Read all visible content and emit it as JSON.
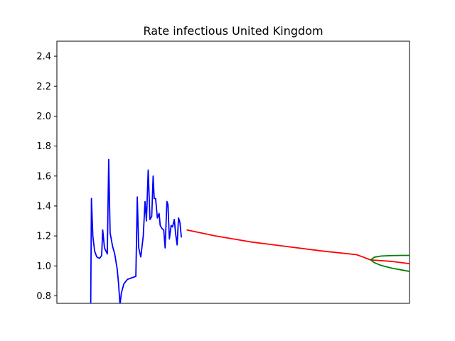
{
  "chart_data": {
    "type": "line",
    "title": "Rate infectious United Kingdom",
    "xlabel": "",
    "ylabel": "",
    "ylim": [
      0.75,
      2.5
    ],
    "xlim": [
      0,
      100
    ],
    "yticks": [
      "0.8",
      "1.0",
      "1.2",
      "1.4",
      "1.6",
      "1.8",
      "2.0",
      "2.2",
      "2.4"
    ],
    "grid": false,
    "series": [
      {
        "color": "#0000ff",
        "x": [
          9.6,
          9.8,
          10.2,
          10.7,
          11.3,
          12.1,
          12.7,
          13.0,
          13.5,
          14.3,
          14.7,
          15.1,
          15.8,
          16.4,
          17.1,
          17.5,
          17.9,
          18.3,
          19.0,
          20.0,
          21.2,
          22.4,
          22.8,
          23.2,
          23.8,
          24.5,
          25.0,
          25.4,
          25.9,
          26.4,
          26.9,
          27.3,
          27.6,
          28.0,
          28.5,
          29.0,
          29.3,
          29.8,
          30.3,
          30.7,
          31.2,
          31.5,
          31.9,
          32.4,
          32.8,
          33.3,
          33.7,
          34.1,
          34.5,
          34.9,
          35.3,
          35.7,
          36.2,
          36.6,
          37.0,
          37.4,
          37.8
        ],
        "y": [
          0.74,
          1.45,
          1.2,
          1.1,
          1.06,
          1.05,
          1.07,
          1.24,
          1.12,
          1.08,
          1.71,
          1.22,
          1.13,
          1.08,
          0.98,
          0.88,
          0.74,
          0.82,
          0.88,
          0.91,
          0.92,
          0.93,
          1.46,
          1.12,
          1.06,
          1.2,
          1.43,
          1.3,
          1.64,
          1.31,
          1.33,
          1.6,
          1.45,
          1.45,
          1.32,
          1.35,
          1.27,
          1.25,
          1.24,
          1.12,
          1.43,
          1.41,
          1.18,
          1.27,
          1.26,
          1.31,
          1.21,
          1.14,
          1.32,
          1.29,
          1.19,
          null,
          null,
          null,
          null,
          null,
          null
        ]
      },
      {
        "color": "#ff0000",
        "x": [
          36.8,
          45,
          55,
          65,
          75,
          85,
          89,
          95,
          100
        ],
        "y": [
          1.24,
          1.2,
          1.16,
          1.13,
          1.1,
          1.075,
          1.04,
          1.03,
          1.015
        ]
      },
      {
        "color": "#008000",
        "x": [
          89,
          90,
          92,
          95,
          98,
          100
        ],
        "y": [
          1.04,
          1.058,
          1.066,
          1.069,
          1.07,
          1.07
        ]
      },
      {
        "color": "#008000",
        "x": [
          89,
          90,
          92,
          95,
          98,
          100
        ],
        "y": [
          1.04,
          1.022,
          1.003,
          0.985,
          0.972,
          0.963
        ]
      }
    ]
  }
}
